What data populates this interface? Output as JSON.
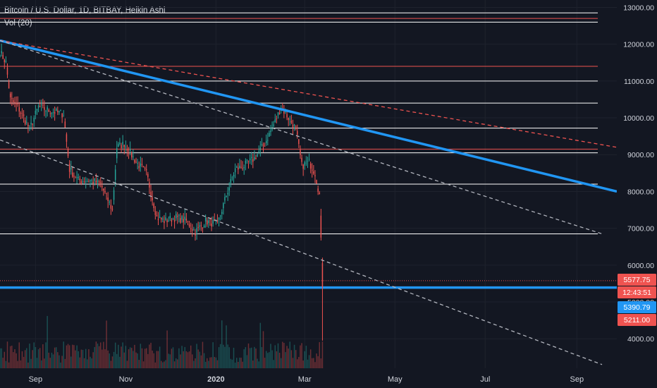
{
  "chart_data": {
    "type": "candlestick",
    "title": "Bitcoin / U.S. Dollar, 1D, BITBAY, Heikin Ashi",
    "indicator": "Vol (20)",
    "y_axis": {
      "ticks": [
        4000,
        5000,
        6000,
        7000,
        8000,
        9000,
        10000,
        11000,
        12000,
        13000
      ],
      "tick_labels": [
        "4000.00",
        "5000.00",
        "6000.00",
        "7000.00",
        "8000.00",
        "9000.00",
        "10000.00",
        "11000.00",
        "12000.00",
        "13000.00"
      ],
      "range": [
        3200,
        13200
      ]
    },
    "x_axis": {
      "tick_labels": [
        "Sep",
        "Nov",
        "2020",
        "Mar",
        "May",
        "Jul",
        "Sep"
      ],
      "bold_labels": [
        "2020"
      ],
      "range": [
        "2019-08-08",
        "2020-09-28"
      ],
      "tick_dates": [
        "2019-09-01",
        "2019-11-01",
        "2020-01-01",
        "2020-03-01",
        "2020-05-01",
        "2020-07-01",
        "2020-09-01"
      ]
    },
    "price_tags": [
      {
        "label": "5577.75",
        "value": 5577.75,
        "color": "#ef5350"
      },
      {
        "label": "12:43:51",
        "value": 5390,
        "color": "#ef5350"
      },
      {
        "label": "5390.79",
        "value": 5390.79,
        "color": "#2196f3"
      },
      {
        "label": "5211.00",
        "value": 5211,
        "color": "#ef5350"
      }
    ],
    "horizontal_levels": [
      {
        "value": 12850,
        "color": "#ffffff"
      },
      {
        "value": 12700,
        "color": "#ef5350"
      },
      {
        "value": 12600,
        "color": "#ffffff"
      },
      {
        "value": 11400,
        "color": "#ef5350"
      },
      {
        "value": 11000,
        "color": "#ffffff"
      },
      {
        "value": 10400,
        "color": "#ffffff"
      },
      {
        "value": 9720,
        "color": "#ffffff"
      },
      {
        "value": 9150,
        "color": "#ef5350"
      },
      {
        "value": 9050,
        "color": "#ffffff"
      },
      {
        "value": 8200,
        "color": "#ffffff"
      },
      {
        "value": 6850,
        "color": "#ffffff"
      }
    ],
    "support_line": {
      "value": 5390.79,
      "color": "#2196f3"
    },
    "trendlines": [
      {
        "from": [
          "2019-08-08",
          12100
        ],
        "to": [
          "2020-09-28",
          8000
        ],
        "color": "#2196f3",
        "style": "solid"
      },
      {
        "from": [
          "2019-08-08",
          12100
        ],
        "to": [
          "2020-09-28",
          9200
        ],
        "color": "#ef5350",
        "style": "dashed"
      },
      {
        "from": [
          "2019-08-08",
          12100
        ],
        "to": [
          "2020-09-18",
          6850
        ],
        "color": "#b2b5be",
        "style": "dashed"
      },
      {
        "from": [
          "2019-08-08",
          9400
        ],
        "to": [
          "2020-09-18",
          3300
        ],
        "color": "#b2b5be",
        "style": "dashed"
      }
    ],
    "ohlc_keypoints": [
      [
        "2019-08-08",
        11800
      ],
      [
        "2019-08-12",
        11500
      ],
      [
        "2019-08-15",
        10500
      ],
      [
        "2019-08-20",
        10300
      ],
      [
        "2019-08-28",
        9700
      ],
      [
        "2019-09-03",
        10300
      ],
      [
        "2019-09-10",
        10200
      ],
      [
        "2019-09-20",
        10100
      ],
      [
        "2019-09-24",
        8600
      ],
      [
        "2019-09-30",
        8300
      ],
      [
        "2019-10-08",
        8300
      ],
      [
        "2019-10-15",
        8200
      ],
      [
        "2019-10-23",
        7500
      ],
      [
        "2019-10-26",
        9200
      ],
      [
        "2019-10-31",
        9300
      ],
      [
        "2019-11-08",
        8800
      ],
      [
        "2019-11-15",
        8500
      ],
      [
        "2019-11-22",
        7300
      ],
      [
        "2019-11-27",
        7200
      ],
      [
        "2019-12-05",
        7300
      ],
      [
        "2019-12-12",
        7200
      ],
      [
        "2019-12-18",
        6900
      ],
      [
        "2019-12-25",
        7200
      ],
      [
        "2020-01-02",
        7100
      ],
      [
        "2020-01-08",
        7900
      ],
      [
        "2020-01-14",
        8600
      ],
      [
        "2020-01-20",
        8700
      ],
      [
        "2020-01-27",
        8900
      ],
      [
        "2020-02-03",
        9300
      ],
      [
        "2020-02-10",
        9900
      ],
      [
        "2020-02-14",
        10300
      ],
      [
        "2020-02-19",
        10000
      ],
      [
        "2020-02-24",
        9700
      ],
      [
        "2020-02-28",
        8700
      ],
      [
        "2020-03-04",
        8800
      ],
      [
        "2020-03-08",
        8500
      ],
      [
        "2020-03-11",
        7900
      ],
      [
        "2020-03-13",
        5400
      ]
    ]
  }
}
